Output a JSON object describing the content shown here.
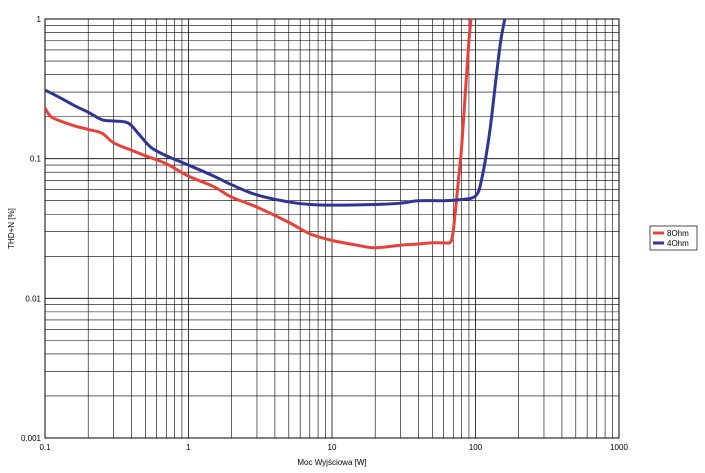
{
  "chart_data": {
    "type": "line",
    "title": "",
    "xlabel": "Moc Wyjściowa [W]",
    "ylabel": "THD+N [%]",
    "xscale": "log",
    "yscale": "log",
    "xlim": [
      0.1,
      1000
    ],
    "ylim": [
      0.001,
      1
    ],
    "grid": true,
    "legend": "right",
    "x_ticks": [
      {
        "value": 0.1,
        "label": "0.1"
      },
      {
        "value": 1,
        "label": "1"
      },
      {
        "value": 10,
        "label": "10"
      },
      {
        "value": 100,
        "label": "100"
      },
      {
        "value": 1000,
        "label": "1000"
      }
    ],
    "y_ticks": [
      {
        "value": 1,
        "label": "1"
      },
      {
        "value": 0.1,
        "label": "0.1"
      },
      {
        "value": 0.01,
        "label": "0.01"
      },
      {
        "value": 0.001,
        "label": "0.001"
      }
    ],
    "series": [
      {
        "name": "8Ohm",
        "color": "#e8413a",
        "points": [
          [
            0.1,
            0.23
          ],
          [
            0.11,
            0.2
          ],
          [
            0.13,
            0.185
          ],
          [
            0.16,
            0.172
          ],
          [
            0.2,
            0.162
          ],
          [
            0.25,
            0.152
          ],
          [
            0.3,
            0.13
          ],
          [
            0.4,
            0.115
          ],
          [
            0.5,
            0.105
          ],
          [
            0.7,
            0.092
          ],
          [
            1,
            0.075
          ],
          [
            1.5,
            0.063
          ],
          [
            2,
            0.053
          ],
          [
            3,
            0.045
          ],
          [
            5,
            0.035
          ],
          [
            7,
            0.029
          ],
          [
            10,
            0.026
          ],
          [
            15,
            0.024
          ],
          [
            20,
            0.023
          ],
          [
            30,
            0.024
          ],
          [
            40,
            0.0245
          ],
          [
            50,
            0.025
          ],
          [
            60,
            0.025
          ],
          [
            68,
            0.026
          ],
          [
            72,
            0.04
          ],
          [
            76,
            0.07
          ],
          [
            80,
            0.12
          ],
          [
            85,
            0.3
          ],
          [
            90,
            0.7
          ],
          [
            93,
            1.0
          ]
        ]
      },
      {
        "name": "4Ohm",
        "color": "#2f3593",
        "points": [
          [
            0.1,
            0.31
          ],
          [
            0.13,
            0.27
          ],
          [
            0.16,
            0.24
          ],
          [
            0.2,
            0.215
          ],
          [
            0.25,
            0.19
          ],
          [
            0.3,
            0.186
          ],
          [
            0.38,
            0.18
          ],
          [
            0.45,
            0.15
          ],
          [
            0.55,
            0.12
          ],
          [
            0.7,
            0.105
          ],
          [
            1,
            0.09
          ],
          [
            1.5,
            0.075
          ],
          [
            2,
            0.065
          ],
          [
            3,
            0.055
          ],
          [
            5,
            0.049
          ],
          [
            7,
            0.047
          ],
          [
            10,
            0.0465
          ],
          [
            20,
            0.047
          ],
          [
            30,
            0.048
          ],
          [
            40,
            0.05
          ],
          [
            60,
            0.05
          ],
          [
            80,
            0.051
          ],
          [
            100,
            0.054
          ],
          [
            110,
            0.07
          ],
          [
            125,
            0.15
          ],
          [
            140,
            0.4
          ],
          [
            150,
            0.7
          ],
          [
            160,
            1.0
          ]
        ]
      }
    ]
  }
}
